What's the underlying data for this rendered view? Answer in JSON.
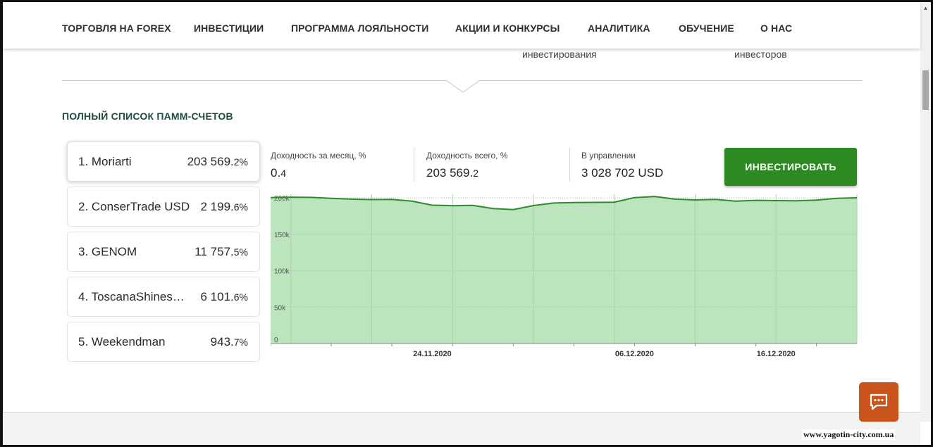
{
  "nav": {
    "items": [
      {
        "label": "ТОРГОВЛЯ НА FOREX"
      },
      {
        "label": "ИНВЕСТИЦИИ"
      },
      {
        "label": "ПРОГРАММА ЛОЯЛЬНОСТИ"
      },
      {
        "label": "АКЦИИ И КОНКУРСЫ"
      },
      {
        "label": "АНАЛИТИКА"
      },
      {
        "label": "ОБУЧЕНИЕ"
      },
      {
        "label": "О НАС"
      }
    ]
  },
  "stats_cut": {
    "left": "инвестирования",
    "right": "инвесторов"
  },
  "section_title": "ПОЛНЫЙ СПИСОК ПАММ-СЧЕТОВ",
  "accounts": [
    {
      "name": "1. Moriarti",
      "value_main": "203 569.",
      "value_dec": "2%",
      "active": true
    },
    {
      "name": "2. ConserTrade USD",
      "value_main": "2 199.",
      "value_dec": "6%",
      "active": false
    },
    {
      "name": "3. GENOM",
      "value_main": "11 757.",
      "value_dec": "5%",
      "active": false
    },
    {
      "name": "4. ToscanaShines…",
      "value_main": "6 101.",
      "value_dec": "6%",
      "active": false
    },
    {
      "name": "5. Weekendman",
      "value_main": "943.",
      "value_dec": "7%",
      "active": false
    }
  ],
  "stats": {
    "monthly": {
      "label": "Доходность за месяц, %",
      "main": "0.",
      "dec": "4"
    },
    "total": {
      "label": "Доходность всего, %",
      "main": "203 569.",
      "dec": "2"
    },
    "managed": {
      "label": "В управлении",
      "value": "3 028 702 USD"
    }
  },
  "invest_button": "ИНВЕСТИРОВАТЬ",
  "colors": {
    "accent_green": "#2d8a22",
    "chart_fill": "#bde5bd",
    "chart_line": "#2f8a2f",
    "title_dark_green": "#1d4a43",
    "chat_orange": "#c9541c"
  },
  "chart_data": {
    "type": "area",
    "ylim": [
      0,
      205000
    ],
    "yticks": [
      "0",
      "50k",
      "100k",
      "150k",
      "200k"
    ],
    "ytick_values": [
      0,
      50000,
      100000,
      150000,
      200000
    ],
    "xticks": [
      "24.11.2020",
      "06.12.2020",
      "16.12.2020"
    ],
    "xtick_index": [
      8,
      18,
      25
    ],
    "grid": true,
    "series": [
      {
        "values": [
          200500,
          201000,
          200700,
          199500,
          198300,
          197700,
          198000,
          195500,
          190000,
          189300,
          189800,
          185500,
          184000,
          189500,
          193000,
          193700,
          193900,
          194200,
          200500,
          202000,
          198300,
          197300,
          198000,
          195500,
          196700,
          196300,
          196000,
          197000,
          199500,
          200200
        ]
      }
    ]
  },
  "watermark": "www.yagotin-city.com.ua"
}
